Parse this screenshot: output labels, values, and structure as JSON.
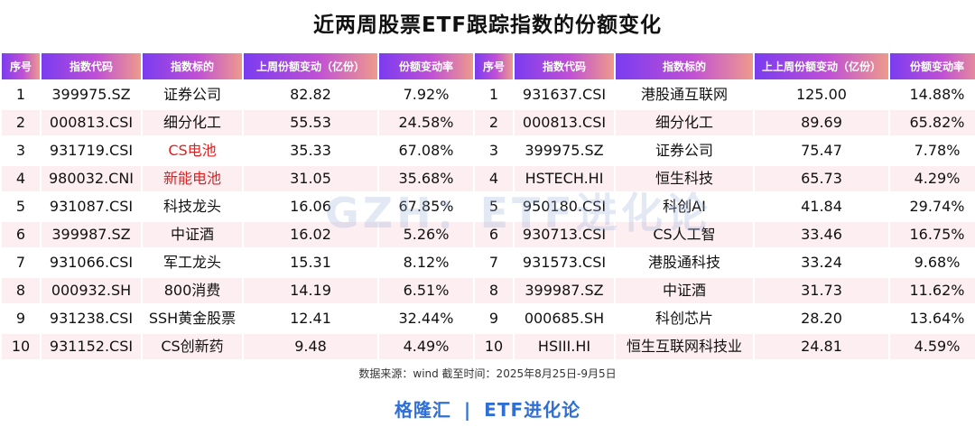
{
  "title": "近两周股票ETF跟踪指数的份额变化",
  "watermark": "GZH：ETF进化论",
  "source": "数据来源：wind 截至时间：2025年8月25日-9月5日",
  "brand": {
    "left": "格隆汇",
    "separator": "|",
    "right": "ETF进化论"
  },
  "colors": {
    "header_start": "#7a3cf0",
    "header_end": "#ee9a8c",
    "row_alt": "#fdeef1",
    "highlight": "#e02020",
    "brand": "#2f6fd6"
  },
  "chart_data": {
    "type": "table",
    "headers": [
      "序号",
      "指数代码",
      "指数标的",
      "上周份额变动（亿份）",
      "份额变动率",
      "序号",
      "指数代码",
      "指数标的",
      "上上周份额变动（亿份）",
      "份额变动率"
    ],
    "rows": [
      [
        "1",
        "399975.SZ",
        "证券公司",
        "82.82",
        "7.92%",
        "1",
        "931637.CSI",
        "港股通互联网",
        "125.00",
        "14.88%"
      ],
      [
        "2",
        "000813.CSI",
        "细分化工",
        "55.53",
        "24.58%",
        "2",
        "000813.CSI",
        "细分化工",
        "89.69",
        "65.82%"
      ],
      [
        "3",
        "931719.CSI",
        "CS电池",
        "35.33",
        "67.08%",
        "3",
        "399975.SZ",
        "证券公司",
        "75.47",
        "7.78%"
      ],
      [
        "4",
        "980032.CNI",
        "新能电池",
        "31.05",
        "35.68%",
        "4",
        "HSTECH.HI",
        "恒生科技",
        "65.73",
        "4.29%"
      ],
      [
        "5",
        "931087.CSI",
        "科技龙头",
        "16.06",
        "67.85%",
        "5",
        "950180.CSI",
        "科创AI",
        "41.84",
        "29.74%"
      ],
      [
        "6",
        "399987.SZ",
        "中证酒",
        "16.02",
        "5.26%",
        "6",
        "930713.CSI",
        "CS人工智",
        "33.46",
        "16.75%"
      ],
      [
        "7",
        "931066.CSI",
        "军工龙头",
        "15.31",
        "8.12%",
        "7",
        "931573.CSI",
        "港股通科技",
        "33.24",
        "9.68%"
      ],
      [
        "8",
        "000932.SH",
        "800消费",
        "14.19",
        "6.51%",
        "8",
        "399987.SZ",
        "中证酒",
        "31.73",
        "11.62%"
      ],
      [
        "9",
        "931238.CSI",
        "SSH黄金股票",
        "12.41",
        "32.44%",
        "9",
        "000685.SH",
        "科创芯片",
        "28.20",
        "13.64%"
      ],
      [
        "10",
        "931152.CSI",
        "CS创新药",
        "9.48",
        "4.49%",
        "10",
        "HSIII.HI",
        "恒生互联网科技业",
        "24.81",
        "4.59%"
      ]
    ],
    "highlighted_cells": [
      [
        2,
        2
      ],
      [
        3,
        2
      ]
    ]
  }
}
